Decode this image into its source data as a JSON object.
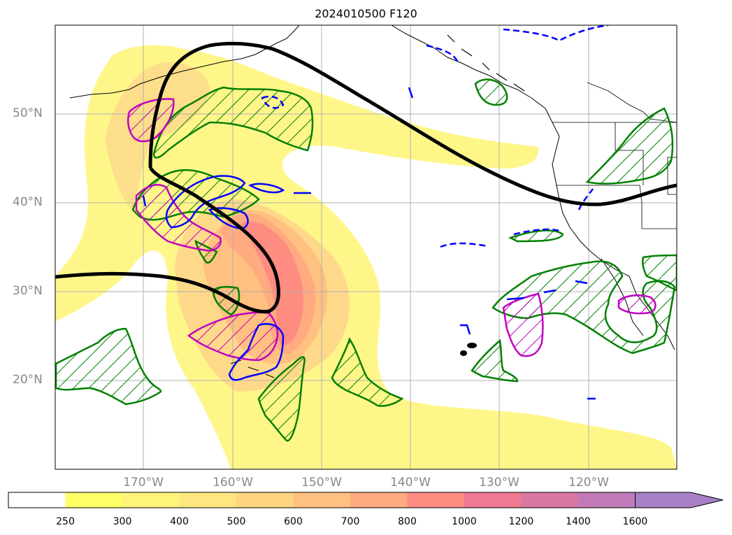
{
  "title": "2024010500 F120",
  "lat_labels": [
    "50°N",
    "40°N",
    "30°N",
    "20°N"
  ],
  "lon_labels": [
    "170°W",
    "160°W",
    "150°W",
    "140°W",
    "130°W",
    "120°W"
  ],
  "colorbar": {
    "ticks": [
      "250",
      "300",
      "400",
      "500",
      "600",
      "700",
      "800",
      "1000",
      "1200",
      "1400",
      "1600"
    ],
    "colors": [
      "#ffff66",
      "#fff47a",
      "#ffe680",
      "#ffd480",
      "#ffc080",
      "#ffaa80",
      "#ff8c80",
      "#f07890",
      "#d878a0",
      "#c07ab8",
      "#a880c8"
    ],
    "extend": "max"
  },
  "legend_colors": {
    "jet_contour": "#000000",
    "green_hatch": "#008000",
    "magenta_hatch": "#c000c0",
    "blue_solid": "#0000ff",
    "blue_dashed": "#0000ff"
  }
}
